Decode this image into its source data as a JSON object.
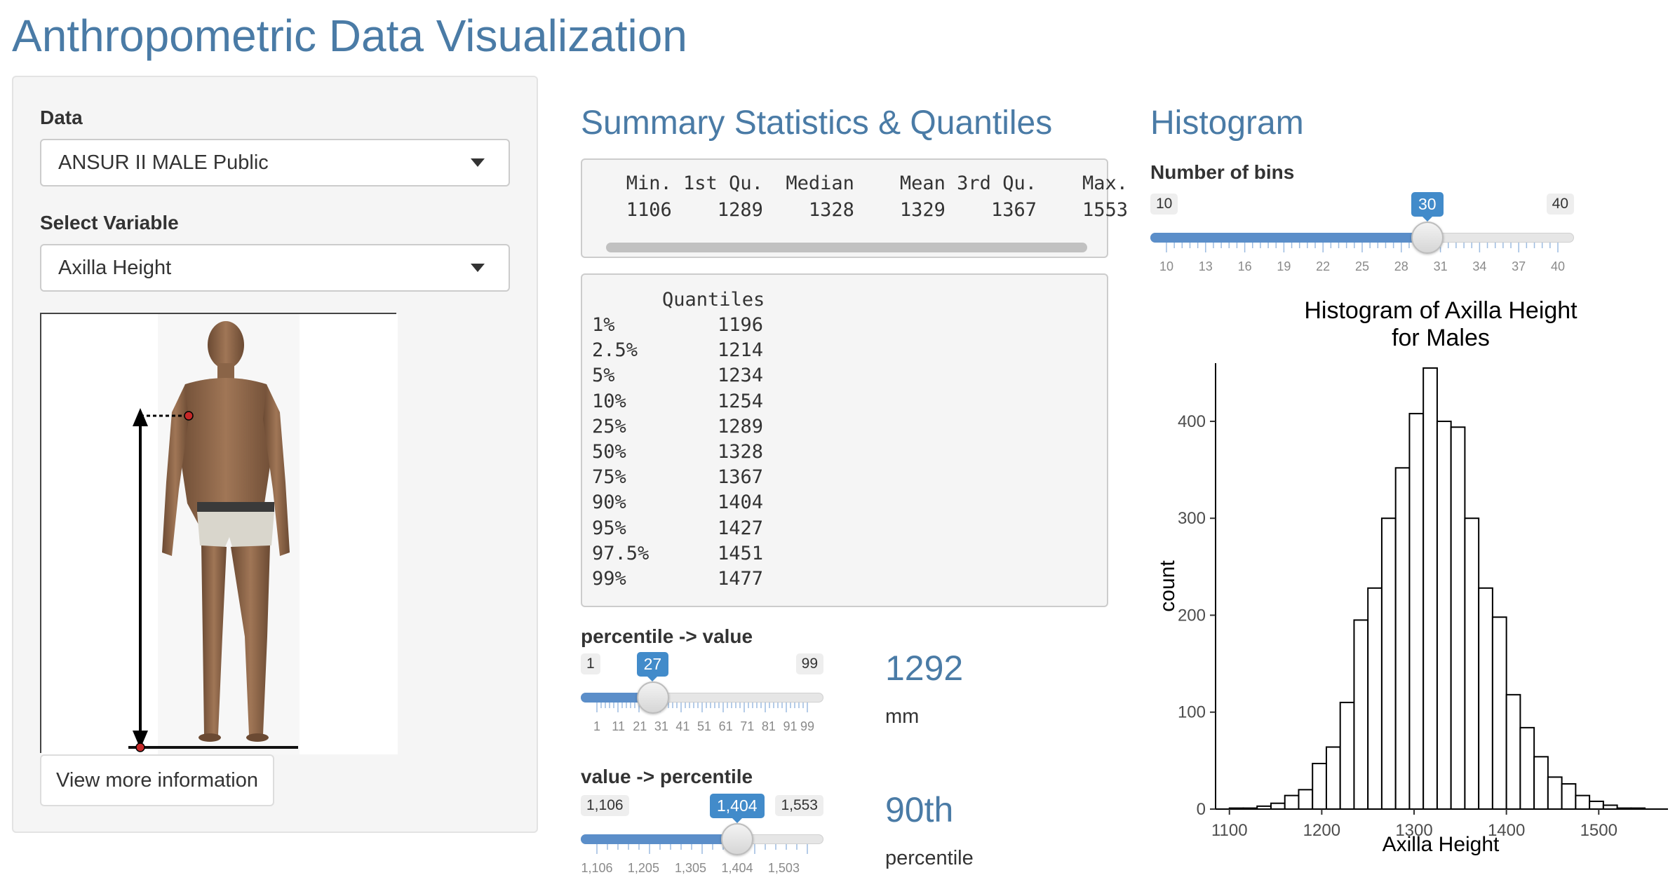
{
  "app": {
    "title": "Anthropometric Data Visualization"
  },
  "sidebar": {
    "data_label": "Data",
    "data_select_value": "ANSUR II MALE Public",
    "variable_label": "Select Variable",
    "variable_select_value": "Axilla Height",
    "more_info_button": "View more information",
    "figure_icon": "human-figure-measurement-icon"
  },
  "summary": {
    "heading": "Summary Statistics & Quantiles",
    "header_line": "   Min. 1st Qu.  Median    Mean 3rd Qu.    Max. ",
    "values_line": "   1106    1289    1328    1329    1367    1553 ",
    "quantiles_header": "Quantiles",
    "quantiles": [
      {
        "p": "1%",
        "v": "1196"
      },
      {
        "p": "2.5%",
        "v": "1214"
      },
      {
        "p": "5%",
        "v": "1234"
      },
      {
        "p": "10%",
        "v": "1254"
      },
      {
        "p": "25%",
        "v": "1289"
      },
      {
        "p": "50%",
        "v": "1328"
      },
      {
        "p": "75%",
        "v": "1367"
      },
      {
        "p": "90%",
        "v": "1404"
      },
      {
        "p": "95%",
        "v": "1427"
      },
      {
        "p": "97.5%",
        "v": "1451"
      },
      {
        "p": "99%",
        "v": "1477"
      }
    ]
  },
  "percentile_to_value": {
    "label": "percentile -> value",
    "min": "1",
    "max": "99",
    "selected": "27",
    "min_num": 1,
    "max_num": 99,
    "selected_num": 27,
    "ticks": [
      "1",
      "11",
      "21",
      "31",
      "41",
      "51",
      "61",
      "71",
      "81",
      "91",
      "99"
    ],
    "ticks_num": [
      1,
      11,
      21,
      31,
      41,
      51,
      61,
      71,
      81,
      91,
      99
    ],
    "result_value": "1292",
    "result_unit": "mm"
  },
  "value_to_percentile": {
    "label": "value -> percentile",
    "min": "1,106",
    "max": "1,553",
    "selected": "1,404",
    "min_num": 1106,
    "max_num": 1553,
    "selected_num": 1404,
    "ticks": [
      "1,106",
      "1,205",
      "1,305",
      "1,404",
      "1,503"
    ],
    "ticks_num": [
      1106,
      1205,
      1305,
      1404,
      1503
    ],
    "result_value": "90th",
    "result_unit": "percentile"
  },
  "histogram_section": {
    "heading": "Histogram",
    "bins_label": "Number of bins",
    "min": "10",
    "max": "40",
    "selected": "30",
    "min_num": 10,
    "max_num": 40,
    "selected_num": 30,
    "ticks": [
      "10",
      "13",
      "16",
      "19",
      "22",
      "25",
      "28",
      "31",
      "34",
      "37",
      "40"
    ],
    "ticks_num": [
      10,
      13,
      16,
      19,
      22,
      25,
      28,
      31,
      34,
      37,
      40
    ]
  },
  "chart_data": {
    "type": "bar",
    "title_line1": "Histogram of Axilla Height",
    "title_line2": "for Males",
    "xlabel": "Axilla Height",
    "ylabel": "count",
    "xlim": [
      1085,
      1575
    ],
    "ylim": [
      0,
      460
    ],
    "x_ticks": [
      1100,
      1200,
      1300,
      1400,
      1500
    ],
    "y_ticks": [
      0,
      100,
      200,
      300,
      400
    ],
    "bin_start": 1100,
    "bin_width": 15,
    "counts": [
      1,
      1,
      3,
      6,
      14,
      20,
      47,
      64,
      110,
      195,
      228,
      300,
      352,
      408,
      455,
      400,
      394,
      300,
      228,
      198,
      118,
      84,
      54,
      33,
      26,
      14,
      8,
      4,
      1,
      1
    ],
    "grid": false
  }
}
